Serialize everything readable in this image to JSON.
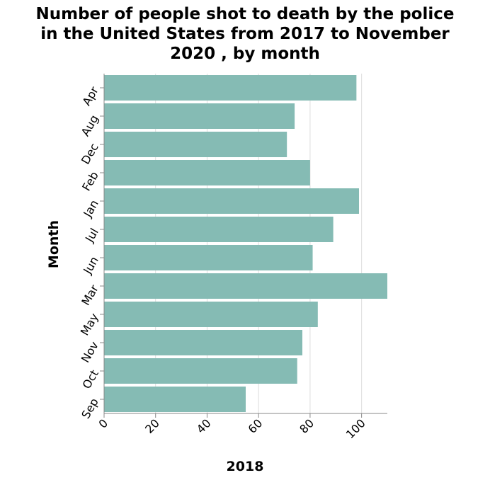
{
  "chart_data": {
    "type": "bar",
    "orientation": "horizontal",
    "title_lines": [
      "Number of people shot to death by the police",
      "in the United States from 2017 to November",
      "2020 , by month"
    ],
    "xlabel": "2018",
    "ylabel": "Month",
    "categories": [
      "Apr",
      "Aug",
      "Dec",
      "Feb",
      "Jan",
      "Jul",
      "Jun",
      "Mar",
      "May",
      "Nov",
      "Oct",
      "Sep"
    ],
    "values": [
      98,
      74,
      71,
      80,
      99,
      89,
      81,
      110,
      83,
      77,
      75,
      55
    ],
    "xlim": [
      0,
      110
    ],
    "xticks": [
      0,
      20,
      40,
      60,
      80,
      100
    ],
    "grid": true,
    "bar_color": "#85bbb4",
    "grid_color": "#dddddd",
    "axis_color": "#888888"
  }
}
